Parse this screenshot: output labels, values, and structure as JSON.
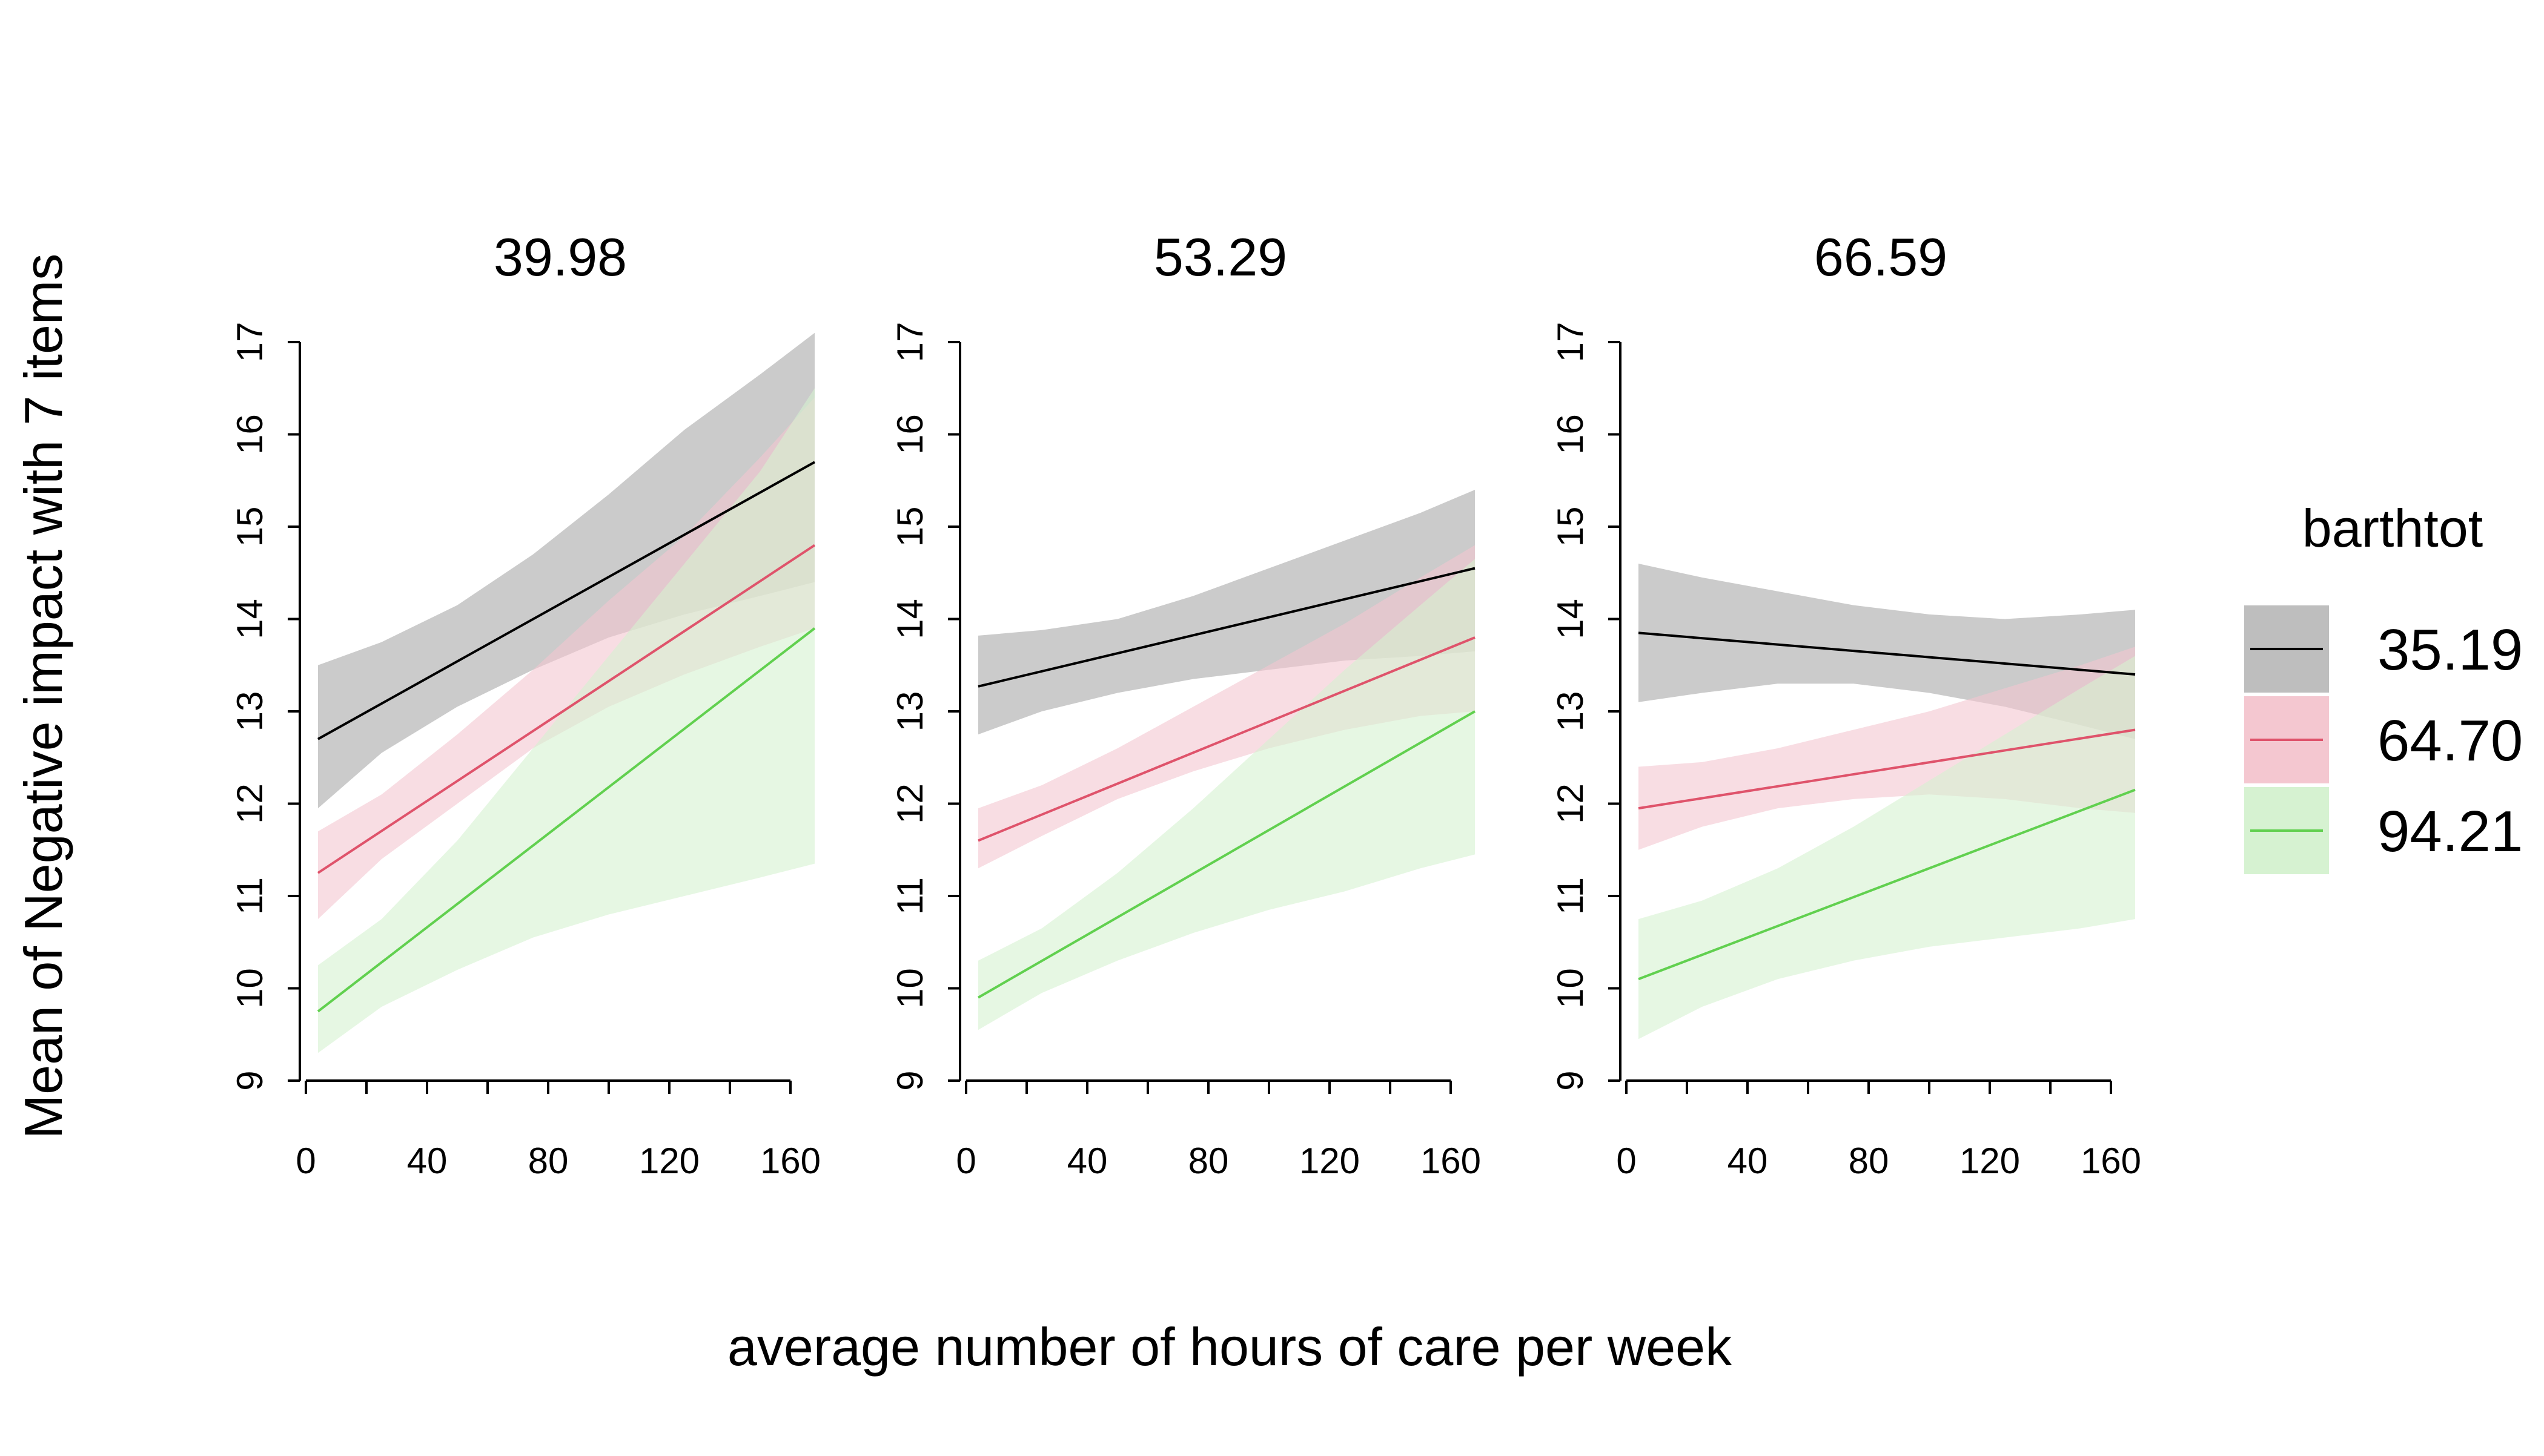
{
  "chart_data": {
    "type": "line",
    "ylabel": "Mean of Negative impact with 7 items",
    "xlabel": "average number of hours of care per week",
    "xlim": [
      0,
      168
    ],
    "ylim": [
      9,
      17
    ],
    "x_ticks": [
      "0",
      "40",
      "80",
      "120",
      "160"
    ],
    "y_ticks": [
      "9",
      "10",
      "11",
      "12",
      "13",
      "14",
      "15",
      "16",
      "17"
    ],
    "confidence_bands": true,
    "grid": false,
    "legend": {
      "title": "barthtot",
      "position": "right",
      "entries": [
        "35.19",
        "64.70",
        "94.21"
      ]
    },
    "colors": {
      "35.19": "#000000",
      "64.70": "#df536b",
      "94.21": "#61d04f"
    },
    "band_colors": {
      "35.19": "#bebebe",
      "64.70": "#f4c7d0",
      "94.21": "#d6f2d1"
    },
    "panels": [
      {
        "title": "39.98",
        "series": [
          {
            "name": "35.19",
            "x": [
              4,
              168
            ],
            "y": [
              12.7,
              15.7
            ],
            "band": {
              "x": [
                4,
                25,
                50,
                75,
                100,
                125,
                150,
                168
              ],
              "lower": [
                11.95,
                12.55,
                13.05,
                13.45,
                13.8,
                14.05,
                14.25,
                14.4
              ],
              "upper": [
                13.5,
                13.75,
                14.15,
                14.7,
                15.35,
                16.05,
                16.65,
                17.1
              ]
            }
          },
          {
            "name": "64.70",
            "x": [
              4,
              168
            ],
            "y": [
              11.25,
              14.8
            ],
            "band": {
              "x": [
                4,
                25,
                50,
                75,
                100,
                125,
                150,
                168
              ],
              "lower": [
                10.75,
                11.4,
                12.0,
                12.6,
                13.05,
                13.4,
                13.7,
                13.9
              ],
              "upper": [
                11.7,
                12.1,
                12.75,
                13.45,
                14.2,
                14.9,
                15.75,
                16.4
              ]
            }
          },
          {
            "name": "94.21",
            "x": [
              4,
              168
            ],
            "y": [
              9.75,
              13.9
            ],
            "band": {
              "x": [
                4,
                25,
                50,
                75,
                100,
                125,
                150,
                168
              ],
              "lower": [
                9.3,
                9.8,
                10.2,
                10.55,
                10.8,
                11.0,
                11.2,
                11.35
              ],
              "upper": [
                10.25,
                10.75,
                11.6,
                12.6,
                13.6,
                14.6,
                15.6,
                16.5
              ]
            }
          }
        ]
      },
      {
        "title": "53.29",
        "series": [
          {
            "name": "35.19",
            "x": [
              4,
              168
            ],
            "y": [
              13.27,
              14.55
            ],
            "band": {
              "x": [
                4,
                25,
                50,
                75,
                100,
                125,
                150,
                168
              ],
              "lower": [
                12.75,
                13.0,
                13.2,
                13.35,
                13.45,
                13.55,
                13.6,
                13.65
              ],
              "upper": [
                13.82,
                13.88,
                14.0,
                14.25,
                14.55,
                14.85,
                15.15,
                15.4
              ]
            }
          },
          {
            "name": "64.70",
            "x": [
              4,
              168
            ],
            "y": [
              11.6,
              13.8
            ],
            "band": {
              "x": [
                4,
                25,
                50,
                75,
                100,
                125,
                150,
                168
              ],
              "lower": [
                11.3,
                11.65,
                12.05,
                12.35,
                12.6,
                12.8,
                12.95,
                13.0
              ],
              "upper": [
                11.95,
                12.2,
                12.6,
                13.05,
                13.5,
                13.95,
                14.45,
                14.8
              ]
            }
          },
          {
            "name": "94.21",
            "x": [
              4,
              168
            ],
            "y": [
              9.9,
              13.0
            ],
            "band": {
              "x": [
                4,
                25,
                50,
                75,
                100,
                125,
                150,
                168
              ],
              "lower": [
                9.55,
                9.95,
                10.3,
                10.6,
                10.85,
                11.05,
                11.3,
                11.45
              ],
              "upper": [
                10.3,
                10.65,
                11.25,
                11.95,
                12.7,
                13.45,
                14.15,
                14.65
              ]
            }
          }
        ]
      },
      {
        "title": "66.59",
        "series": [
          {
            "name": "35.19",
            "x": [
              4,
              168
            ],
            "y": [
              13.85,
              13.4
            ],
            "band": {
              "x": [
                4,
                25,
                50,
                75,
                100,
                125,
                150,
                168
              ],
              "lower": [
                13.1,
                13.2,
                13.3,
                13.3,
                13.2,
                13.05,
                12.85,
                12.7
              ],
              "upper": [
                14.6,
                14.45,
                14.3,
                14.15,
                14.05,
                14.0,
                14.05,
                14.1
              ]
            }
          },
          {
            "name": "64.70",
            "x": [
              4,
              168
            ],
            "y": [
              11.95,
              12.8
            ],
            "band": {
              "x": [
                4,
                25,
                50,
                75,
                100,
                125,
                150,
                168
              ],
              "lower": [
                11.5,
                11.75,
                11.95,
                12.05,
                12.1,
                12.05,
                11.95,
                11.9
              ],
              "upper": [
                12.4,
                12.45,
                12.6,
                12.8,
                13.0,
                13.25,
                13.5,
                13.7
              ]
            }
          },
          {
            "name": "94.21",
            "x": [
              4,
              168
            ],
            "y": [
              10.1,
              12.15
            ],
            "band": {
              "x": [
                4,
                25,
                50,
                75,
                100,
                125,
                150,
                168
              ],
              "lower": [
                9.45,
                9.8,
                10.1,
                10.3,
                10.45,
                10.55,
                10.65,
                10.75
              ],
              "upper": [
                10.75,
                10.95,
                11.3,
                11.75,
                12.25,
                12.75,
                13.25,
                13.6
              ]
            }
          }
        ]
      }
    ]
  }
}
